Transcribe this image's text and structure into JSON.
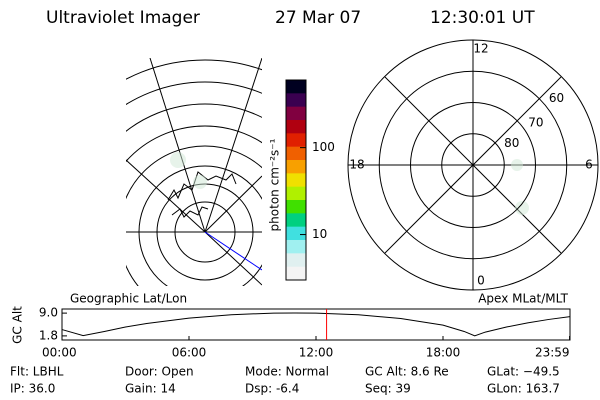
{
  "header": {
    "instrument": "Ultraviolet Imager",
    "date": "27 Mar 07",
    "time": "12:30:01 UT"
  },
  "geo_map": {
    "title": "Geographic Lat/Lon"
  },
  "colorbar": {
    "label": "photon cm⁻²s⁻¹",
    "scale": "log",
    "lim": [
      3,
      600
    ],
    "ticks": [
      10,
      100
    ]
  },
  "polar_plot": {
    "title": "Apex MLat/MLT",
    "mlt_ticks": [
      12,
      18,
      6,
      0
    ],
    "lat_lim": [
      90,
      50
    ],
    "lat_ticks": [
      80,
      70,
      60
    ]
  },
  "altitude": {
    "ylabel": "GC Alt",
    "ylim": [
      0.5,
      10.3
    ],
    "yticks": [
      {
        "value": 9,
        "label": "9.0"
      },
      1.8
    ],
    "xlim": [
      0,
      24
    ],
    "xticks": [
      {
        "value": 0,
        "label": "00:00"
      },
      {
        "value": 6,
        "label": "06:00"
      },
      {
        "value": 12,
        "label": "12:00"
      },
      {
        "value": 18,
        "label": "18:00"
      },
      {
        "value": 23.98,
        "label": "23:59"
      }
    ],
    "x": [
      0,
      1,
      2,
      3,
      4,
      6,
      8,
      10,
      11,
      12,
      14,
      16,
      18,
      19,
      19.5,
      20,
      21,
      22,
      23,
      24
    ],
    "values": [
      3.8,
      1.9,
      3.2,
      4.6,
      5.7,
      7.4,
      8.5,
      9.0,
      9.05,
      9.0,
      8.5,
      7.3,
      5.2,
      3.2,
      1.8,
      3.0,
      4.6,
      5.9,
      7.0,
      7.9
    ],
    "marker_time": 12.5,
    "marker_color": "#ff0000"
  },
  "footer": {
    "rows": [
      [
        "Flt: LBHL",
        "Door: Open",
        "Mode: Normal",
        "GC Alt: 8.6 Re",
        "GLat: −49.5"
      ],
      [
        "IP: 36.0",
        "Gain: 14",
        "Dsp:    -6.4",
        "Seq: 39",
        "GLon: 163.7"
      ]
    ]
  }
}
